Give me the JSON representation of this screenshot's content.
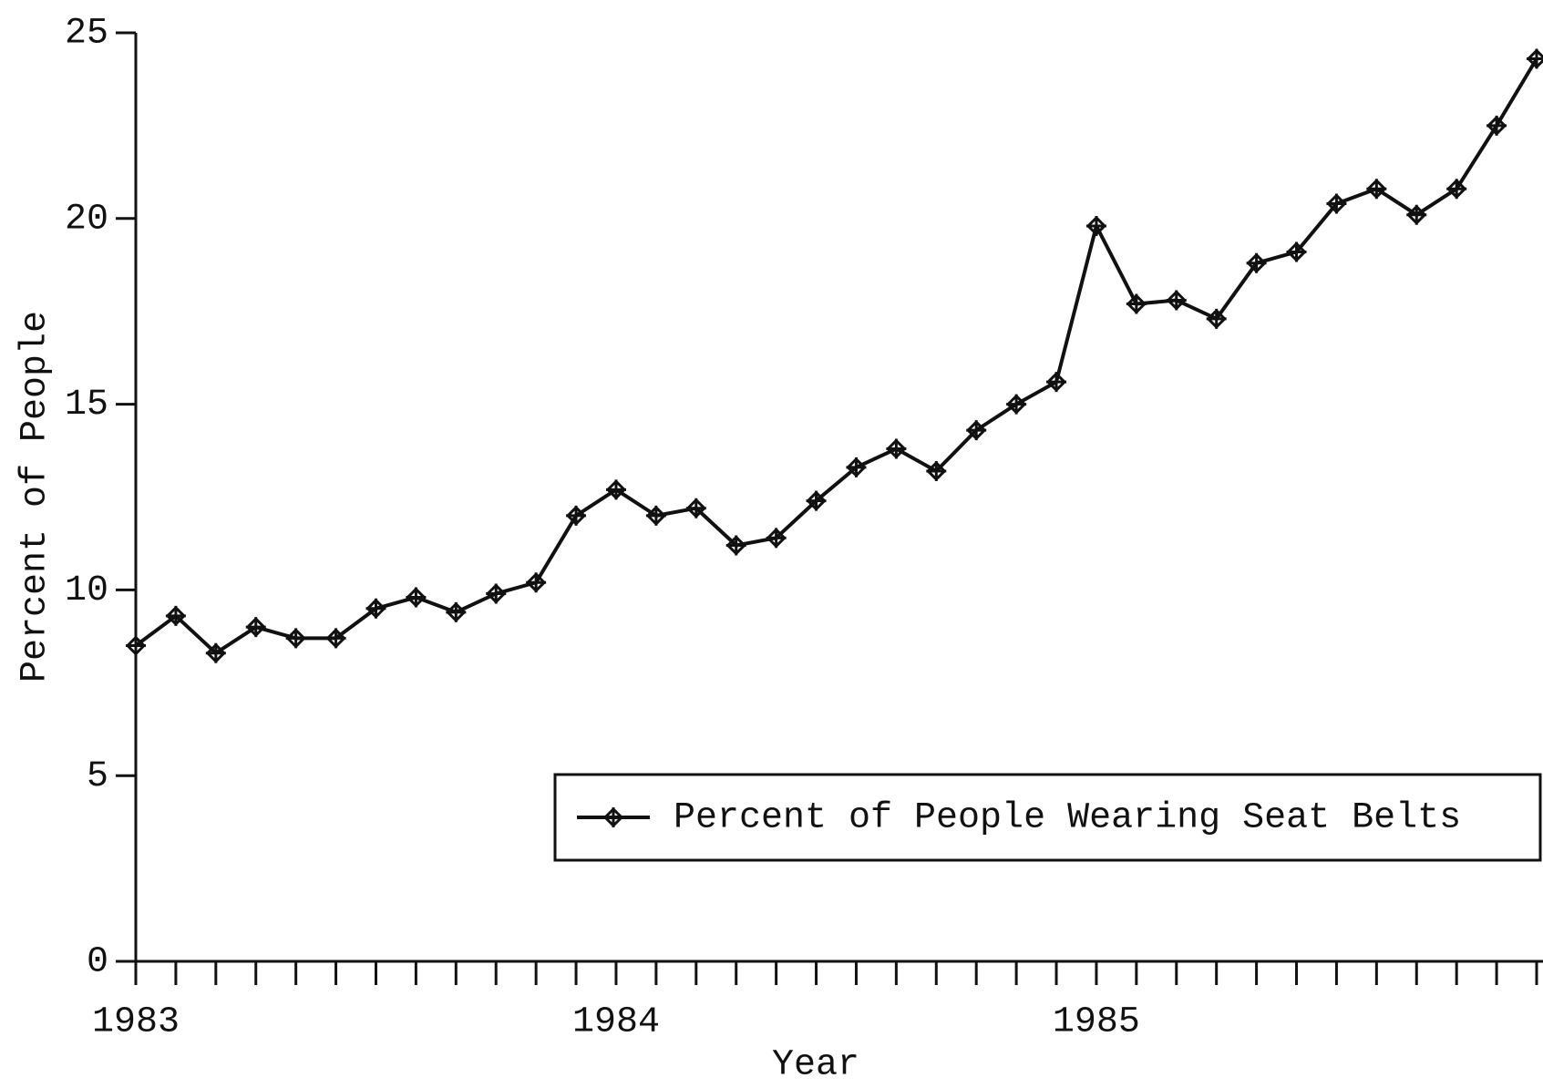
{
  "chart_data": {
    "type": "line",
    "x_label": "Year",
    "y_label": "Percent of People",
    "categories": [
      "1983",
      null,
      null,
      null,
      null,
      null,
      null,
      null,
      null,
      null,
      null,
      null,
      "1984",
      null,
      null,
      null,
      null,
      null,
      null,
      null,
      null,
      null,
      null,
      null,
      "1985",
      null,
      null,
      null,
      null,
      null,
      null,
      null,
      null,
      null,
      null,
      null
    ],
    "series": [
      {
        "name": "Percent of People Wearing Seat Belts",
        "color": "#111111",
        "values": [
          8.5,
          9.3,
          8.3,
          9.0,
          8.7,
          8.7,
          9.5,
          9.8,
          9.4,
          9.9,
          10.2,
          12.0,
          12.7,
          12.0,
          12.2,
          11.2,
          11.4,
          12.4,
          13.3,
          13.8,
          13.2,
          14.3,
          15.0,
          15.6,
          19.8,
          17.7,
          17.8,
          17.3,
          18.8,
          19.1,
          20.4,
          20.8,
          20.1,
          20.8,
          22.5,
          24.3
        ]
      }
    ],
    "ylim": [
      0,
      25
    ],
    "yticks": [
      0,
      5,
      10,
      15,
      20,
      25
    ],
    "grid": false,
    "legend": "lower right"
  }
}
